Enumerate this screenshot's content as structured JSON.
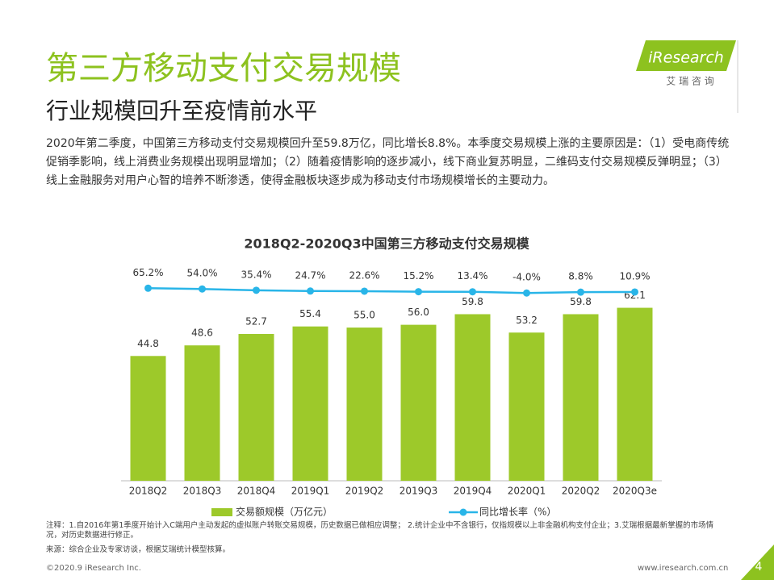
{
  "header": {
    "title": "第三方移动支付交易规模",
    "subtitle": "行业规模回升至疫情前水平",
    "logo": "iResearch",
    "logo_sub": "艾 瑞 咨 询"
  },
  "paragraph": "2020年第二季度，中国第三方移动支付交易规模回升至59.8万亿，同比增长8.8%。本季度交易规模上涨的主要原因是：（1）受电商传统促销季影响，线上消费业务规模出现明显增加；（2）随着疫情影响的逐步减小，线下商业复苏明显，二维码支付交易规模反弹明显；（3）线上金融服务对用户心智的培养不断渗透，使得金融板块逐步成为移动支付市场规模增长的主要动力。",
  "chart_data": {
    "type": "bar",
    "title": "2018Q2-2020Q3中国第三方移动支付交易规模",
    "categories": [
      "2018Q2",
      "2018Q3",
      "2018Q4",
      "2019Q1",
      "2019Q2",
      "2019Q3",
      "2019Q4",
      "2020Q1",
      "2020Q2",
      "2020Q3e"
    ],
    "series": [
      {
        "name": "交易额规模（万亿元）",
        "color": "#9dc92a",
        "type": "bar",
        "values": [
          44.8,
          48.6,
          52.7,
          55.4,
          55.0,
          56.0,
          59.8,
          53.2,
          59.8,
          62.1
        ],
        "value_labels": [
          "44.8",
          "48.6",
          "52.7",
          "55.4",
          "55.0",
          "56.0",
          "59.8",
          "53.2",
          "59.8",
          "62.1"
        ]
      },
      {
        "name": "同比增长率（%）",
        "color": "#29b5e8",
        "type": "line",
        "axis": "y2",
        "values": [
          65.2,
          54.0,
          35.4,
          24.7,
          22.6,
          15.2,
          13.4,
          -4.0,
          8.8,
          10.9
        ],
        "value_labels": [
          "65.2%",
          "54.0%",
          "35.4%",
          "24.7%",
          "22.6%",
          "15.2%",
          "13.4%",
          "-4.0%",
          "8.8%",
          "10.9%"
        ]
      }
    ],
    "ylim": [
      0,
      75
    ],
    "y2lim": [
      -2700,
      300
    ]
  },
  "notes": "注释：1.自2016年第1季度开始计入C端用户主动发起的虚拟账户转账交易规模，历史数据已做相应调整； 2.统计企业中不含银行，仅指规模以上非金融机构支付企业；3.艾瑞根据最新掌握的市场情况，对历史数据进行修正。",
  "source": "来源：综合企业及专家访谈，根据艾瑞统计模型核算。",
  "footer": {
    "copyright": "©2020.9 iResearch Inc.",
    "url": "www.iresearch.com.cn",
    "page": "4"
  }
}
